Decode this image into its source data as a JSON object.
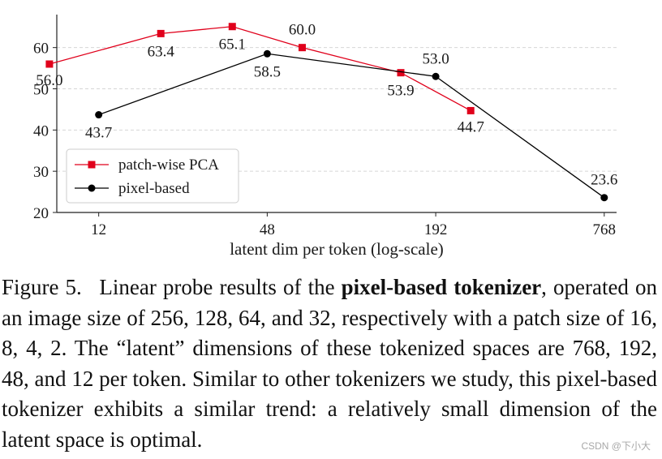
{
  "chart_data": {
    "type": "line",
    "xlabel": "latent dim per token (log-scale)",
    "ylabel": "",
    "x_scale": "log2",
    "xlim": [
      8.5,
      850
    ],
    "ylim": [
      20,
      68
    ],
    "xticks": [
      12,
      48,
      192,
      768
    ],
    "xtick_labels": [
      "12",
      "48",
      "192",
      "768"
    ],
    "yticks": [
      20,
      30,
      40,
      50,
      60
    ],
    "ytick_labels": [
      "20",
      "30",
      "40",
      "50",
      "60"
    ],
    "grid": "horizontal dashed",
    "legend_position": "lower-left",
    "series": [
      {
        "name": "patch-wise PCA",
        "color": "#e0001b",
        "marker": "square",
        "x": [
          8,
          20,
          36,
          64,
          144,
          256
        ],
        "y": [
          56.0,
          63.4,
          65.1,
          60.0,
          53.9,
          44.7
        ],
        "labels": [
          "56.0",
          "63.4",
          "65.1",
          "60.0",
          "53.9",
          "44.7"
        ]
      },
      {
        "name": "pixel-based",
        "color": "#000000",
        "marker": "circle",
        "x": [
          12,
          48,
          192,
          768
        ],
        "y": [
          43.7,
          58.5,
          53.0,
          23.6
        ],
        "labels": [
          "43.7",
          "58.5",
          "53.0",
          "23.6"
        ]
      }
    ]
  },
  "caption": {
    "label": "Figure 5.",
    "intro": "Linear probe results of the ",
    "bold": "pixel-based tokenizer",
    "rest": ", operated on an image size of 256, 128, 64, and 32, respectively with a patch size of 16, 8, 4, 2. The “latent” dimensions of these tokenized spaces are 768, 192, 48, and 12 per token. Similar to other tokenizers we study, this pixel-based tokenizer exhibits a similar trend: a relatively small dimension of the latent space is optimal."
  },
  "watermark": "CSDN @下小大"
}
